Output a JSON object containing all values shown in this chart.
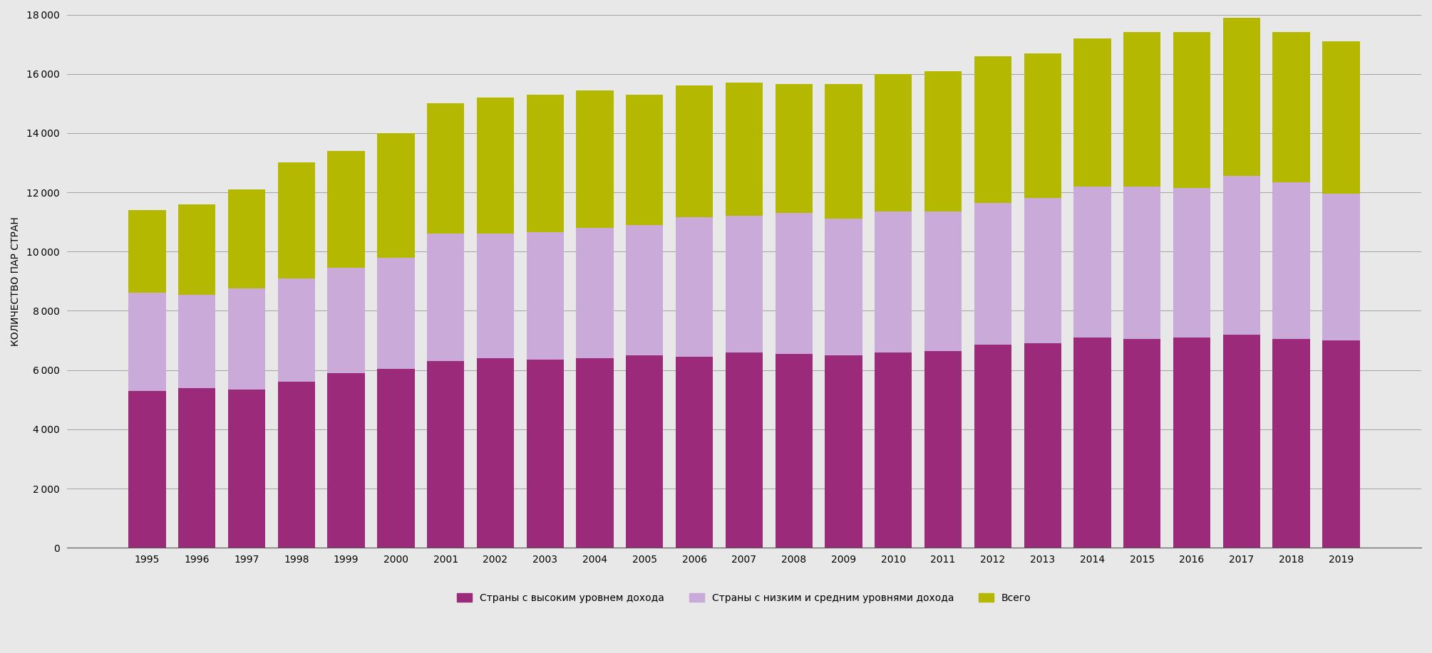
{
  "years": [
    1995,
    1996,
    1997,
    1998,
    1999,
    2000,
    2001,
    2002,
    2003,
    2004,
    2005,
    2006,
    2007,
    2008,
    2009,
    2010,
    2011,
    2012,
    2013,
    2014,
    2015,
    2016,
    2017,
    2018,
    2019
  ],
  "high_income": [
    5300,
    5400,
    5350,
    5600,
    5900,
    6050,
    6300,
    6400,
    6350,
    6400,
    6500,
    6450,
    6600,
    6550,
    6500,
    6600,
    6650,
    6850,
    6900,
    7100,
    7050,
    7100,
    7200,
    7050,
    7000
  ],
  "low_mid_income": [
    3300,
    3150,
    3400,
    3500,
    3550,
    3750,
    4300,
    4200,
    4300,
    4400,
    4400,
    4700,
    4600,
    4750,
    4600,
    4750,
    4700,
    4800,
    4900,
    5100,
    5150,
    5050,
    5350,
    5300,
    4950
  ],
  "total": [
    11400,
    11600,
    12100,
    13000,
    13400,
    14000,
    15000,
    15200,
    15300,
    15450,
    15300,
    15600,
    15700,
    15650,
    15650,
    16000,
    16100,
    16600,
    16700,
    17200,
    17400,
    17400,
    17900,
    17400,
    17100
  ],
  "color_high_income": "#9b2a7a",
  "color_low_mid_income": "#c9aad8",
  "color_total": "#b5b800",
  "ylabel": "КОЛИЧЕСТВО ПАР СТРАН",
  "ylim": [
    0,
    18000
  ],
  "yticks": [
    0,
    2000,
    4000,
    6000,
    8000,
    10000,
    12000,
    14000,
    16000,
    18000
  ],
  "legend_high_income": "Страны с высоким уровнем дохода",
  "legend_low_mid_income": "Страны с низким и средним уровнями дохода",
  "legend_total": "Всего",
  "background_color": "#e8e8e8",
  "bar_width": 0.75,
  "tick_fontsize": 10,
  "legend_fontsize": 10
}
